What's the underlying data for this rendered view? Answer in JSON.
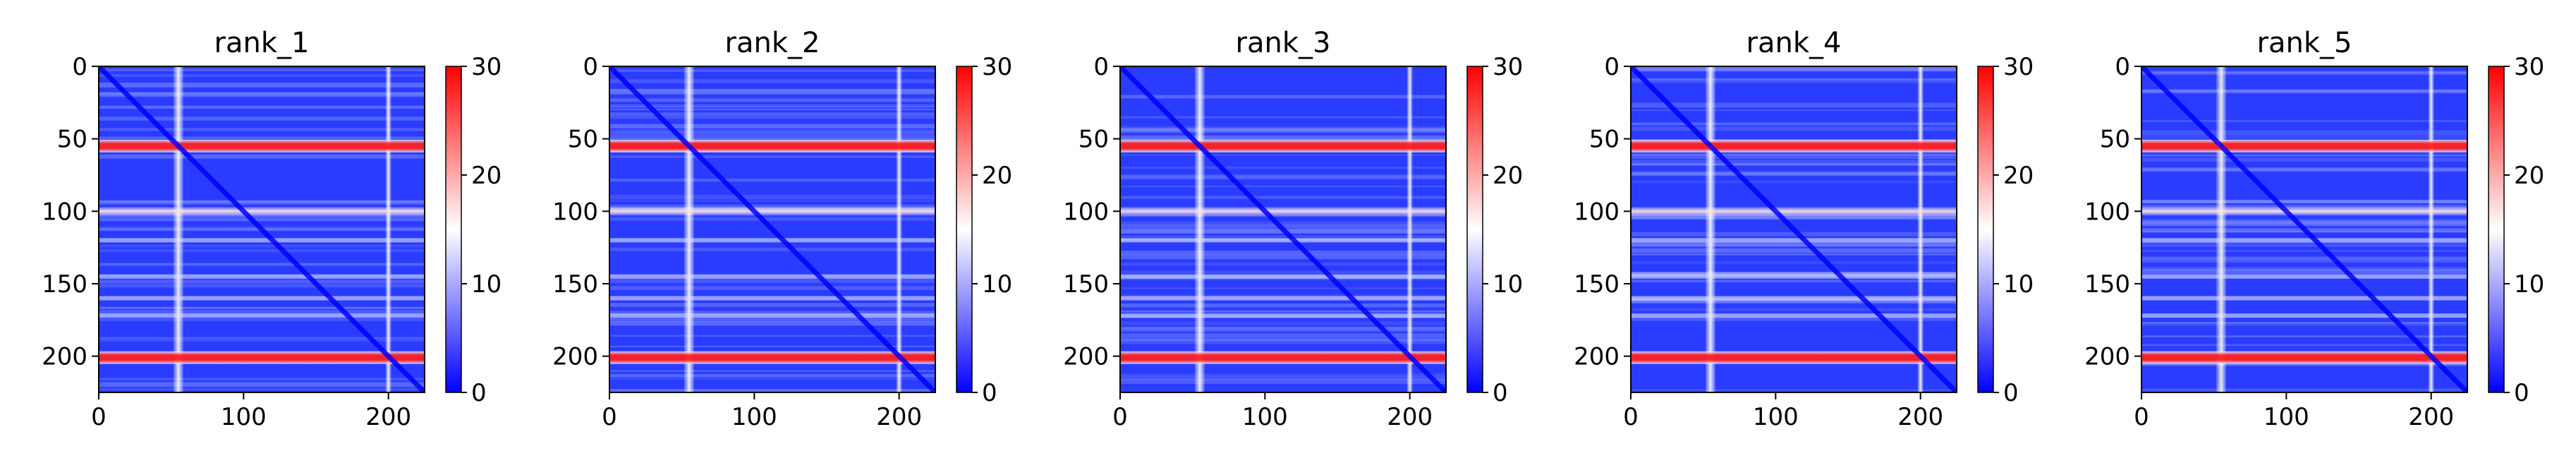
{
  "chart_data": [
    {
      "type": "heatmap",
      "title": "rank_1",
      "x_ticks": [
        0,
        100,
        200
      ],
      "y_ticks": [
        0,
        50,
        100,
        150,
        200
      ],
      "xlim": [
        0,
        225
      ],
      "ylim": [
        225,
        0
      ],
      "colorbar": {
        "ticks": [
          0,
          10,
          20,
          30
        ],
        "range": [
          0,
          30
        ],
        "colormap": "bwr"
      },
      "bands": {
        "row_red": [
          55,
          100,
          201
        ],
        "col_white": [
          55,
          200
        ],
        "diagonal": true
      }
    },
    {
      "type": "heatmap",
      "title": "rank_2",
      "x_ticks": [
        0,
        100,
        200
      ],
      "y_ticks": [
        0,
        50,
        100,
        150,
        200
      ],
      "xlim": [
        0,
        225
      ],
      "ylim": [
        225,
        0
      ],
      "colorbar": {
        "ticks": [
          0,
          10,
          20,
          30
        ],
        "range": [
          0,
          30
        ],
        "colormap": "bwr"
      },
      "bands": {
        "row_red": [
          55,
          100,
          201
        ],
        "col_white": [
          55,
          200
        ],
        "diagonal": true
      }
    },
    {
      "type": "heatmap",
      "title": "rank_3",
      "x_ticks": [
        0,
        100,
        200
      ],
      "y_ticks": [
        0,
        50,
        100,
        150,
        200
      ],
      "xlim": [
        0,
        225
      ],
      "ylim": [
        225,
        0
      ],
      "colorbar": {
        "ticks": [
          0,
          10,
          20,
          30
        ],
        "range": [
          0,
          30
        ],
        "colormap": "bwr"
      },
      "bands": {
        "row_red": [
          55,
          100,
          201
        ],
        "col_white": [
          55,
          200
        ],
        "diagonal": true
      }
    },
    {
      "type": "heatmap",
      "title": "rank_4",
      "x_ticks": [
        0,
        100,
        200
      ],
      "y_ticks": [
        0,
        50,
        100,
        150,
        200
      ],
      "xlim": [
        0,
        225
      ],
      "ylim": [
        225,
        0
      ],
      "colorbar": {
        "ticks": [
          0,
          10,
          20,
          30
        ],
        "range": [
          0,
          30
        ],
        "colormap": "bwr"
      },
      "bands": {
        "row_red": [
          55,
          100,
          201
        ],
        "col_white": [
          55,
          200
        ],
        "diagonal": true
      }
    },
    {
      "type": "heatmap",
      "title": "rank_5",
      "x_ticks": [
        0,
        100,
        200
      ],
      "y_ticks": [
        0,
        50,
        100,
        150,
        200
      ],
      "xlim": [
        0,
        225
      ],
      "ylim": [
        225,
        0
      ],
      "colorbar": {
        "ticks": [
          0,
          10,
          20,
          30
        ],
        "range": [
          0,
          30
        ],
        "colormap": "bwr"
      },
      "bands": {
        "row_red": [
          55,
          100,
          201
        ],
        "col_white": [
          55,
          200
        ],
        "diagonal": true
      }
    }
  ]
}
